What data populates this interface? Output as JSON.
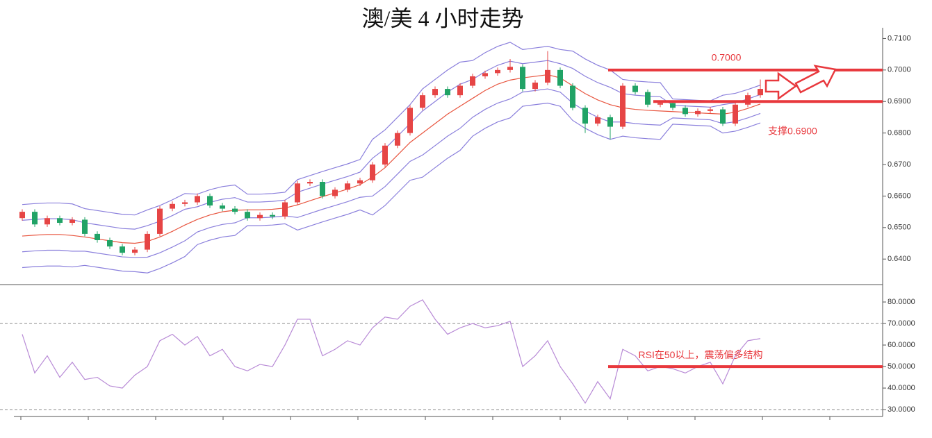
{
  "chart_data": {
    "type": "candlestick",
    "title": "澳/美 4 小时走势",
    "up_color": "#e64545",
    "down_color": "#21a366",
    "open": [
      0.653,
      0.655,
      0.651,
      0.653,
      0.6515,
      0.6525,
      0.648,
      0.646,
      0.644,
      0.642,
      0.643,
      0.648,
      0.656,
      0.6575,
      0.658,
      0.66,
      0.657,
      0.656,
      0.655,
      0.653,
      0.654,
      0.6535,
      0.658,
      0.664,
      0.6645,
      0.66,
      0.662,
      0.664,
      0.665,
      0.67,
      0.676,
      0.68,
      0.688,
      0.692,
      0.694,
      0.692,
      0.695,
      0.698,
      0.699,
      0.7,
      0.701,
      0.694,
      0.696,
      0.7,
      0.695,
      0.688,
      0.683,
      0.685,
      0.682,
      0.695,
      0.693,
      0.689,
      0.6895,
      0.688,
      0.686,
      0.687,
      0.6875,
      0.683,
      0.689,
      0.692
    ],
    "high": [
      0.6558,
      0.6558,
      0.6538,
      0.6538,
      0.6533,
      0.6533,
      0.6488,
      0.6468,
      0.6448,
      0.6438,
      0.6488,
      0.6568,
      0.6583,
      0.6588,
      0.6608,
      0.6608,
      0.6578,
      0.6568,
      0.6558,
      0.6548,
      0.6548,
      0.6588,
      0.6648,
      0.6653,
      0.6653,
      0.6628,
      0.6648,
      0.6658,
      0.6708,
      0.6768,
      0.6808,
      0.6888,
      0.6928,
      0.6948,
      0.6948,
      0.6958,
      0.6988,
      0.6998,
      0.7008,
      0.7035,
      0.7018,
      0.6968,
      0.706,
      0.7008,
      0.6958,
      0.6888,
      0.6858,
      0.6858,
      0.6958,
      0.6958,
      0.6938,
      0.6903,
      0.6903,
      0.6888,
      0.6878,
      0.6883,
      0.6883,
      0.6898,
      0.6928,
      0.697
    ],
    "low": [
      0.6522,
      0.6502,
      0.6502,
      0.6507,
      0.6507,
      0.6472,
      0.6452,
      0.6432,
      0.6412,
      0.6412,
      0.6422,
      0.6472,
      0.6552,
      0.6567,
      0.6572,
      0.6562,
      0.6552,
      0.6542,
      0.6522,
      0.6522,
      0.6527,
      0.6527,
      0.6572,
      0.6632,
      0.6592,
      0.6592,
      0.6612,
      0.6632,
      0.6642,
      0.6692,
      0.6752,
      0.6792,
      0.6872,
      0.6912,
      0.6912,
      0.6912,
      0.6942,
      0.6972,
      0.6982,
      0.6992,
      0.6932,
      0.6932,
      0.6952,
      0.6942,
      0.6872,
      0.68,
      0.6822,
      0.678,
      0.6812,
      0.6922,
      0.6882,
      0.6882,
      0.6872,
      0.6852,
      0.6852,
      0.6862,
      0.6822,
      0.6822,
      0.6882,
      0.6912
    ],
    "close": [
      0.655,
      0.651,
      0.653,
      0.6515,
      0.6525,
      0.648,
      0.646,
      0.644,
      0.642,
      0.643,
      0.648,
      0.656,
      0.6575,
      0.658,
      0.66,
      0.657,
      0.656,
      0.655,
      0.653,
      0.654,
      0.6535,
      0.658,
      0.664,
      0.6645,
      0.66,
      0.662,
      0.664,
      0.665,
      0.67,
      0.676,
      0.68,
      0.688,
      0.692,
      0.694,
      0.692,
      0.695,
      0.698,
      0.699,
      0.7,
      0.701,
      0.694,
      0.696,
      0.7,
      0.695,
      0.688,
      0.683,
      0.685,
      0.682,
      0.695,
      0.693,
      0.689,
      0.6895,
      0.688,
      0.686,
      0.687,
      0.6875,
      0.683,
      0.689,
      0.692,
      0.694
    ],
    "bands": [
      {
        "color": "#8a7fdc",
        "values": [
          0.6573,
          0.6576,
          0.6578,
          0.6578,
          0.6575,
          0.656,
          0.6554,
          0.6548,
          0.6542,
          0.654,
          0.6556,
          0.657,
          0.6588,
          0.6608,
          0.6606,
          0.662,
          0.663,
          0.6635,
          0.6606,
          0.6606,
          0.6608,
          0.6612,
          0.6652,
          0.6665,
          0.6678,
          0.669,
          0.6702,
          0.6716,
          0.678,
          0.681,
          0.685,
          0.689,
          0.694,
          0.697,
          0.7,
          0.7025,
          0.703,
          0.7055,
          0.7075,
          0.7088,
          0.7065,
          0.707,
          0.7075,
          0.7065,
          0.706,
          0.7035,
          0.7015,
          0.7,
          0.697,
          0.6965,
          0.6962,
          0.696,
          0.6908,
          0.6906,
          0.6904,
          0.6902,
          0.692,
          0.6926,
          0.6938,
          0.6952
        ]
      },
      {
        "color": "#8a7fdc",
        "values": [
          0.6523,
          0.6526,
          0.6528,
          0.6528,
          0.6525,
          0.6515,
          0.6509,
          0.6503,
          0.6497,
          0.6495,
          0.6506,
          0.652,
          0.6538,
          0.6558,
          0.6566,
          0.658,
          0.659,
          0.6595,
          0.6581,
          0.6581,
          0.6583,
          0.6587,
          0.6612,
          0.6625,
          0.6638,
          0.665,
          0.6662,
          0.6676,
          0.672,
          0.675,
          0.679,
          0.683,
          0.687,
          0.69,
          0.693,
          0.6955,
          0.697,
          0.6995,
          0.7015,
          0.7028,
          0.702,
          0.7025,
          0.703,
          0.702,
          0.7005,
          0.698,
          0.696,
          0.6945,
          0.6925,
          0.692,
          0.6917,
          0.6915,
          0.6888,
          0.6886,
          0.6884,
          0.6882,
          0.689,
          0.6896,
          0.6908,
          0.6922
        ]
      },
      {
        "color": "#e8553f",
        "values": [
          0.6473,
          0.6476,
          0.6478,
          0.6478,
          0.6475,
          0.647,
          0.6464,
          0.6458,
          0.6452,
          0.645,
          0.6456,
          0.647,
          0.6488,
          0.6508,
          0.6526,
          0.654,
          0.655,
          0.6555,
          0.6556,
          0.6556,
          0.6558,
          0.6562,
          0.6572,
          0.6585,
          0.6598,
          0.661,
          0.6622,
          0.6636,
          0.666,
          0.669,
          0.673,
          0.677,
          0.68,
          0.683,
          0.686,
          0.6885,
          0.691,
          0.6935,
          0.6955,
          0.6968,
          0.6975,
          0.698,
          0.6985,
          0.6975,
          0.695,
          0.6925,
          0.6905,
          0.689,
          0.688,
          0.6875,
          0.6872,
          0.687,
          0.6868,
          0.6866,
          0.6864,
          0.6862,
          0.686,
          0.6866,
          0.6878,
          0.6892
        ]
      },
      {
        "color": "#8a7fdc",
        "values": [
          0.6423,
          0.6426,
          0.6428,
          0.6428,
          0.6425,
          0.6425,
          0.6419,
          0.6413,
          0.6407,
          0.6405,
          0.6406,
          0.642,
          0.6438,
          0.6458,
          0.6486,
          0.65,
          0.651,
          0.6515,
          0.6531,
          0.6531,
          0.6533,
          0.6537,
          0.6532,
          0.6545,
          0.6558,
          0.657,
          0.6582,
          0.6596,
          0.66,
          0.663,
          0.667,
          0.671,
          0.673,
          0.676,
          0.679,
          0.6815,
          0.685,
          0.6875,
          0.6895,
          0.6908,
          0.693,
          0.6935,
          0.694,
          0.693,
          0.6895,
          0.687,
          0.685,
          0.6835,
          0.6835,
          0.683,
          0.6827,
          0.6825,
          0.6848,
          0.6846,
          0.6844,
          0.6842,
          0.683,
          0.6836,
          0.6848,
          0.6862
        ]
      },
      {
        "color": "#8a7fdc",
        "values": [
          0.6373,
          0.6376,
          0.6378,
          0.6378,
          0.6375,
          0.638,
          0.6374,
          0.6368,
          0.6362,
          0.636,
          0.6356,
          0.637,
          0.6388,
          0.6408,
          0.6446,
          0.646,
          0.647,
          0.6475,
          0.6506,
          0.6506,
          0.6508,
          0.6512,
          0.6492,
          0.6505,
          0.6518,
          0.653,
          0.6542,
          0.6556,
          0.654,
          0.657,
          0.661,
          0.665,
          0.666,
          0.669,
          0.672,
          0.6745,
          0.679,
          0.6815,
          0.6835,
          0.6848,
          0.6885,
          0.689,
          0.6895,
          0.6885,
          0.684,
          0.6815,
          0.6795,
          0.678,
          0.679,
          0.6785,
          0.6782,
          0.678,
          0.6828,
          0.6826,
          0.6824,
          0.6822,
          0.68,
          0.6806,
          0.6818,
          0.6832
        ]
      }
    ],
    "ylim": [
      0.6319,
      0.7134
    ],
    "yticks": [
      {
        "value": 0.64,
        "label": "0.6400"
      },
      {
        "value": 0.65,
        "label": "0.6500"
      },
      {
        "value": 0.66,
        "label": "0.6600"
      },
      {
        "value": 0.67,
        "label": "0.6700"
      },
      {
        "value": 0.68,
        "label": "0.6800"
      },
      {
        "value": 0.69,
        "label": "0.6900"
      },
      {
        "value": 0.7,
        "label": "0.7000"
      },
      {
        "value": 0.71,
        "label": "0.7100"
      }
    ],
    "annotations": [
      {
        "text": "0.7000",
        "value": 0.7,
        "color": "#e8383d"
      },
      {
        "text": "支撑0.6900",
        "value": 0.69,
        "color": "#e8383d"
      }
    ],
    "rsi": {
      "type": "line",
      "color": "#b88ad6",
      "values": [
        65,
        47,
        55,
        45,
        52,
        44,
        45,
        41,
        40,
        46,
        50,
        62,
        65,
        60,
        64,
        55,
        58,
        50,
        48,
        51,
        50,
        60,
        72,
        72,
        55,
        58,
        62,
        60,
        68,
        73,
        72,
        78,
        81,
        72,
        65,
        68,
        70,
        68,
        69,
        71,
        50,
        55,
        62,
        50,
        42,
        33,
        43,
        35,
        58,
        55,
        48,
        50,
        49,
        47,
        50,
        52,
        42,
        55,
        62,
        63
      ],
      "ylim": [
        26.8,
        85.5
      ],
      "yticks": [
        {
          "value": 30,
          "label": "30.0000"
        },
        {
          "value": 40,
          "label": "40.0000"
        },
        {
          "value": 50,
          "label": "50.0000"
        },
        {
          "value": 60,
          "label": "60.0000"
        },
        {
          "value": 70,
          "label": "70.0000"
        },
        {
          "value": 80,
          "label": "80.0000"
        }
      ],
      "levels": [
        70,
        30
      ],
      "annotation": {
        "text": "RSI在50以上，震荡偏多结构",
        "value": 50,
        "color": "#e8383d"
      }
    }
  }
}
